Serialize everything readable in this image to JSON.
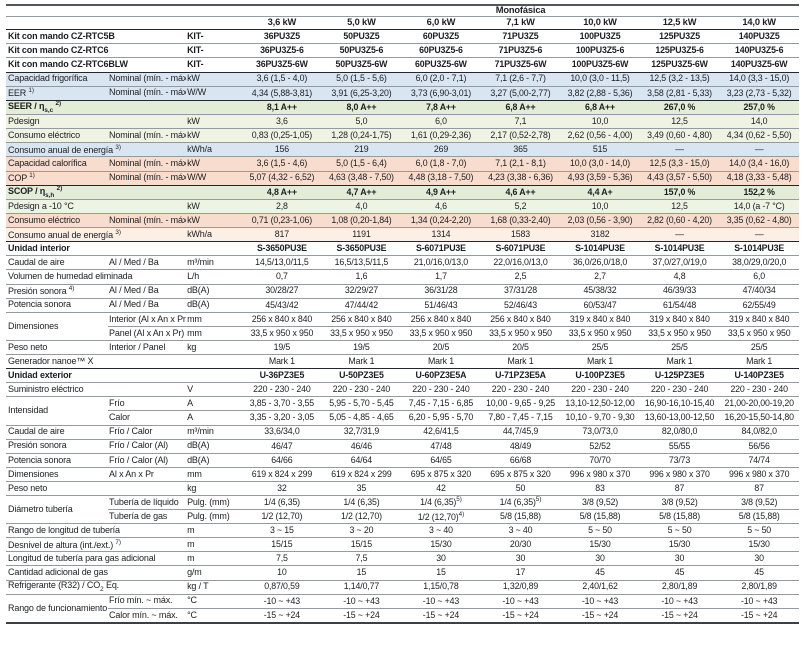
{
  "table": {
    "phase_label": "Monofásica",
    "capacities": [
      "3,6 kW",
      "5,0 kW",
      "6,0 kW",
      "7,1 kW",
      "10,0 kW",
      "12,5 kW",
      "14,0 kW"
    ],
    "rows": [
      {
        "label": "Kit con mando CZ-RTC5B",
        "label_bold": true,
        "sub": null,
        "unit": "KIT-",
        "bold_values": true,
        "border": "thick",
        "values": [
          "36PU3Z5",
          "50PU3Z5",
          "60PU3Z5",
          "71PU3Z5",
          "100PU3Z5",
          "125PU3Z5",
          "140PU3Z5"
        ]
      },
      {
        "label": "Kit con mando CZ-RTC6",
        "label_bold": true,
        "sub": null,
        "unit": "KIT-",
        "bold_values": true,
        "values": [
          "36PU3Z5-6",
          "50PU3Z5-6",
          "60PU3Z5-6",
          "71PU3Z5-6",
          "100PU3Z5-6",
          "125PU3Z5-6",
          "140PU3Z5-6"
        ]
      },
      {
        "label": "Kit con mando CZ-RTC6BLW",
        "label_bold": true,
        "sub": null,
        "unit": "KIT-",
        "bold_values": true,
        "values": [
          "36PU3Z5-6W",
          "50PU3Z5-6W",
          "60PU3Z5-6W",
          "71PU3Z5-6W",
          "100PU3Z5-6W",
          "125PU3Z5-6W",
          "140PU3Z5-6W"
        ]
      },
      {
        "label": "Capacidad frigorífica",
        "sub": "Nominal (mín. - máx.)",
        "unit": "kW",
        "bg": "blue",
        "border": "thick",
        "values": [
          "3,6 (1,5 - 4,0)",
          "5,0 (1,5 - 5,6)",
          "6,0 (2,0 - 7,1)",
          "7,1 (2,6 - 7,7)",
          "10,0 (3,0 - 11,5)",
          "12,5 (3,2 - 13,5)",
          "14,0 (3,3 - 15,0)"
        ]
      },
      {
        "label": "EER",
        "label_sup": "1)",
        "sub": "Nominal (mín. - máx.)",
        "unit": "W/W",
        "bg": "blue",
        "values": [
          "4,34 (5,88-3,81)",
          "3,91 (6,25-3,20)",
          "3,73 (6,90-3,01)",
          "3,27 (5,00-2,77)",
          "3,82 (2,88 - 5,36)",
          "3,58 (2,81 - 5,33)",
          "3,23 (2,73 - 5,32)"
        ]
      },
      {
        "label": "SEER / η",
        "label_subscript": "s,c",
        "label_sup": "2)",
        "label_bold": true,
        "sub": null,
        "unit": "",
        "bg": "green",
        "bold_values": true,
        "border": "thick",
        "values": [
          "8,1 A++",
          "8,0 A++",
          "7,8 A++",
          "6,8 A++",
          "6,8 A++",
          "267,0 %",
          "257,0 %"
        ]
      },
      {
        "label": "Pdesign",
        "sub": null,
        "unit": "kW",
        "bg": "greenl",
        "values": [
          "3,6",
          "5,0",
          "6,0",
          "7,1",
          "10,0",
          "12,5",
          "14,0"
        ]
      },
      {
        "label": "Consumo eléctrico",
        "sub": "Nominal (mín. - máx.)",
        "unit": "kW",
        "bg": "greenl",
        "values": [
          "0,83 (0,25-1,05)",
          "1,28 (0,24-1,75)",
          "1,61 (0,29-2,36)",
          "2,17 (0,52-2,78)",
          "2,62 (0,56 - 4,00)",
          "3,49 (0,60 - 4,80)",
          "4,34 (0,62 - 5,50)"
        ]
      },
      {
        "label": "Consumo anual de energía",
        "label_sup": "3)",
        "sub": null,
        "unit": "kWh/a",
        "bg": "blue",
        "values": [
          "156",
          "219",
          "269",
          "365",
          "515",
          "—",
          "—"
        ]
      },
      {
        "label": "Capacidad calorífica",
        "sub": "Nominal (mín. - máx.)",
        "unit": "kW",
        "bg": "pink",
        "values": [
          "3,6 (1,5 - 4,6)",
          "5,0 (1,5 - 6,4)",
          "6,0 (1,8 - 7,0)",
          "7,1 (2,1 - 8,1)",
          "10,0 (3,0 - 14,0)",
          "12,5 (3,3 - 15,0)",
          "14,0 (3,4 - 16,0)"
        ]
      },
      {
        "label": "COP",
        "label_sup": "1)",
        "sub": "Nominal (mín. - máx.)",
        "unit": "W/W",
        "bg": "pink",
        "values": [
          "5,07 (4,32 - 6,52)",
          "4,63 (3,48 - 7,50)",
          "4,48 (3,18 - 7,50)",
          "4,23 (3,38 - 6,36)",
          "4,93 (3,59 - 5,36)",
          "4,43 (3,57 - 5,50)",
          "4,18 (3,33 - 5,48)"
        ]
      },
      {
        "label": "SCOP / η",
        "label_subscript": "s,h",
        "label_sup": "2)",
        "label_bold": true,
        "sub": null,
        "unit": "",
        "bg": "green",
        "bold_values": true,
        "border": "thick",
        "values": [
          "4,8 A++",
          "4,7 A++",
          "4,9 A++",
          "4,6 A++",
          "4,4 A+",
          "157,0 %",
          "152,2 %"
        ]
      },
      {
        "label": "Pdesign a -10 °C",
        "sub": null,
        "unit": "kW",
        "bg": "greenl",
        "values": [
          "2,8",
          "4,0",
          "4,6",
          "5,2",
          "10,0",
          "12,5",
          "14,0 (a -7 °C)"
        ]
      },
      {
        "label": "Consumo eléctrico",
        "sub": "Nominal (mín. - máx.)",
        "unit": "kW",
        "bg": "pink",
        "values": [
          "0,71 (0,23-1,06)",
          "1,08 (0,20-1,84)",
          "1,34 (0,24-2,20)",
          "1,68 (0,33-2,40)",
          "2,03 (0,56 - 3,90)",
          "2,82 (0,60 - 4,20)",
          "3,35 (0,62 - 4,80)"
        ]
      },
      {
        "label": "Consumo anual de energía",
        "label_sup": "3)",
        "sub": null,
        "unit": "kWh/a",
        "bg": "pinkl",
        "values": [
          "817",
          "1191",
          "1314",
          "1583",
          "3182",
          "—",
          "—"
        ]
      },
      {
        "label": "Unidad interior",
        "label_bold": true,
        "sub": null,
        "unit": "",
        "bold_values": true,
        "border": "thick",
        "values": [
          "S-3650PU3E",
          "S-3650PU3E",
          "S-6071PU3E",
          "S-6071PU3E",
          "S-1014PU3E",
          "S-1014PU3E",
          "S-1014PU3E"
        ]
      },
      {
        "label": "Caudal de aire",
        "sub": "Al / Med / Ba",
        "unit": "m³/min",
        "values": [
          "14,5/13,0/11,5",
          "16,5/13,5/11,5",
          "21,0/16,0/13,0",
          "22,0/16,0/13,0",
          "36,0/26,0/18,0",
          "37,0/27,0/19,0",
          "38,0/29,0/20,0"
        ]
      },
      {
        "label": "Volumen de humedad eliminada",
        "sub": null,
        "unit": "L/h",
        "values": [
          "0,7",
          "1,6",
          "1,7",
          "2,5",
          "2,7",
          "4,8",
          "6,0"
        ]
      },
      {
        "label": "Presión sonora",
        "label_sup": "4)",
        "sub": "Al / Med / Ba",
        "unit": "dB(A)",
        "values": [
          "30/28/27",
          "32/29/27",
          "36/31/28",
          "37/31/28",
          "45/38/32",
          "46/39/33",
          "47/40/34"
        ]
      },
      {
        "label": "Potencia sonora",
        "sub": "Al / Med / Ba",
        "unit": "dB(A)",
        "values": [
          "45/43/42",
          "47/44/42",
          "51/46/43",
          "52/46/43",
          "60/53/47",
          "61/54/48",
          "62/55/49"
        ]
      },
      {
        "label": "Dimensiones",
        "rowspan": 2,
        "sub": "Interior (Al x An x Pr)",
        "unit": "mm",
        "values": [
          "256 x 840 x 840",
          "256 x 840 x 840",
          "256 x 840 x 840",
          "256 x 840 x 840",
          "319 x 840 x 840",
          "319 x 840 x 840",
          "319 x 840 x 840"
        ]
      },
      {
        "skip_label": true,
        "sub": "Panel (Al x An x Pr)",
        "unit": "mm",
        "values": [
          "33,5 x 950 x 950",
          "33,5 x 950 x 950",
          "33,5 x 950 x 950",
          "33,5 x 950 x 950",
          "33,5 x 950 x 950",
          "33,5 x 950 x 950",
          "33,5 x 950 x 950"
        ]
      },
      {
        "label": "Peso neto",
        "sub": "Interior / Panel",
        "unit": "kg",
        "values": [
          "19/5",
          "19/5",
          "20/5",
          "20/5",
          "25/5",
          "25/5",
          "25/5"
        ]
      },
      {
        "label": "Generador nanoe™ X",
        "sub": null,
        "unit": "",
        "values": [
          "Mark 1",
          "Mark 1",
          "Mark 1",
          "Mark 1",
          "Mark 1",
          "Mark 1",
          "Mark 1"
        ]
      },
      {
        "label": "Unidad exterior",
        "label_bold": true,
        "sub": null,
        "unit": "",
        "bold_values": true,
        "border": "thick",
        "values": [
          "U-36PZ3E5",
          "U-50PZ3E5",
          "U-60PZ3E5A",
          "U-71PZ3E5A",
          "U-100PZ3E5",
          "U-125PZ3E5",
          "U-140PZ3E5"
        ]
      },
      {
        "label": "Suministro eléctrico",
        "sub": null,
        "unit": "V",
        "values": [
          "220 - 230 - 240",
          "220 - 230 - 240",
          "220 - 230 - 240",
          "220 - 230 - 240",
          "220 - 230 - 240",
          "220 - 230 - 240",
          "220 - 230 - 240"
        ]
      },
      {
        "label": "Intensidad",
        "rowspan": 2,
        "sub": "Frío",
        "unit": "A",
        "values": [
          "3,85 - 3,70 - 3,55",
          "5,95 - 5,70 - 5,45",
          "7,45 - 7,15 - 6,85",
          "10,00 - 9,65 - 9,25",
          "13,10-12,50-12,00",
          "16,90-16,10-15,40",
          "21,00-20,00-19,20"
        ]
      },
      {
        "skip_label": true,
        "sub": "Calor",
        "unit": "A",
        "values": [
          "3,35 - 3,20 - 3,05",
          "5,05 - 4,85 - 4,65",
          "6,20 - 5,95 - 5,70",
          "7,80 - 7,45 - 7,15",
          "10,10 - 9,70 - 9,30",
          "13,60-13,00-12,50",
          "16,20-15,50-14,80"
        ]
      },
      {
        "label": "Caudal de aire",
        "sub": "Frío / Calor",
        "unit": "m³/min",
        "values": [
          "33,6/34,0",
          "32,7/31,9",
          "42,6/41,5",
          "44,7/45,9",
          "73,0/73,0",
          "82,0/80,0",
          "84,0/82,0"
        ]
      },
      {
        "label": "Presión sonora",
        "sub": "Frío / Calor (Al)",
        "unit": "dB(A)",
        "values": [
          "46/47",
          "46/46",
          "47/48",
          "48/49",
          "52/52",
          "55/55",
          "56/56"
        ]
      },
      {
        "label": "Potencia sonora",
        "sub": "Frío / Calor (Al)",
        "unit": "dB(A)",
        "values": [
          "64/66",
          "64/64",
          "64/65",
          "66/68",
          "70/70",
          "73/73",
          "74/74"
        ]
      },
      {
        "label": "Dimensiones",
        "sub": "Al x An x Pr",
        "unit": "mm",
        "values": [
          "619 x 824 x 299",
          "619 x 824 x 299",
          "695 x 875 x 320",
          "695 x 875 x 320",
          "996 x 980 x 370",
          "996 x 980 x 370",
          "996 x 980 x 370"
        ]
      },
      {
        "label": "Peso neto",
        "sub": null,
        "unit": "kg",
        "values": [
          "32",
          "35",
          "42",
          "50",
          "83",
          "87",
          "87"
        ]
      },
      {
        "label": "Diámetro tubería",
        "rowspan": 2,
        "sub": "Tubería de líquido",
        "unit": "Pulg. (mm)",
        "values": [
          "1/4 (6,35)",
          "1/4 (6,35)",
          "1/4 (6,35)^5)",
          "1/4 (6,35)^5)",
          "3/8 (9,52)",
          "3/8 (9,52)",
          "3/8 (9,52)"
        ]
      },
      {
        "skip_label": true,
        "sub": "Tubería de gas",
        "unit": "Pulg. (mm)",
        "values": [
          "1/2 (12,70)",
          "1/2 (12,70)",
          "1/2 (12,70)^4)",
          "5/8 (15,88)",
          "5/8 (15,88)",
          "5/8 (15,88)",
          "5/8 (15,88)"
        ]
      },
      {
        "label": "Rango de longitud de tubería",
        "sub": null,
        "unit": "m",
        "values": [
          "3 ~ 15",
          "3 ~ 20",
          "3 ~ 40",
          "3 ~ 40",
          "5 ~ 50",
          "5 ~ 50",
          "5 ~ 50"
        ]
      },
      {
        "label": "Desnivel de altura (int./ext.)",
        "label_sup": "7)",
        "sub": null,
        "unit": "m",
        "values": [
          "15/15",
          "15/15",
          "15/30",
          "20/30",
          "15/30",
          "15/30",
          "15/30"
        ]
      },
      {
        "label": "Longitud de tubería para gas adicional",
        "sub": null,
        "unit": "m",
        "values": [
          "7,5",
          "7,5",
          "30",
          "30",
          "30",
          "30",
          "30"
        ]
      },
      {
        "label": "Cantidad adicional de gas",
        "sub": null,
        "unit": "g/m",
        "values": [
          "10",
          "15",
          "15",
          "17",
          "45",
          "45",
          "45"
        ]
      },
      {
        "label": "Refrigerante (R32) / CO",
        "label_subscript": "2",
        "label_tail": " Eq.",
        "sub": null,
        "unit": "kg / T",
        "values": [
          "0,87/0,59",
          "1,14/0,77",
          "1,15/0,78",
          "1,32/0,89",
          "2,40/1,62",
          "2,80/1,89",
          "2,80/1,89"
        ]
      },
      {
        "label": "Rango de funcionamiento",
        "rowspan": 2,
        "sub": "Frío mín. ~ máx.",
        "unit": "°C",
        "values": [
          "-10 ~ +43",
          "-10 ~ +43",
          "-10 ~ +43",
          "-10 ~ +43",
          "-10 ~ +43",
          "-10 ~ +43",
          "-10 ~ +43"
        ]
      },
      {
        "skip_label": true,
        "sub": "Calor mín. ~ máx.",
        "unit": "°C",
        "values": [
          "-15 ~ +24",
          "-15 ~ +24",
          "-15 ~ +24",
          "-15 ~ +24",
          "-15 ~ +24",
          "-15 ~ +24",
          "-15 ~ +24"
        ]
      }
    ]
  }
}
